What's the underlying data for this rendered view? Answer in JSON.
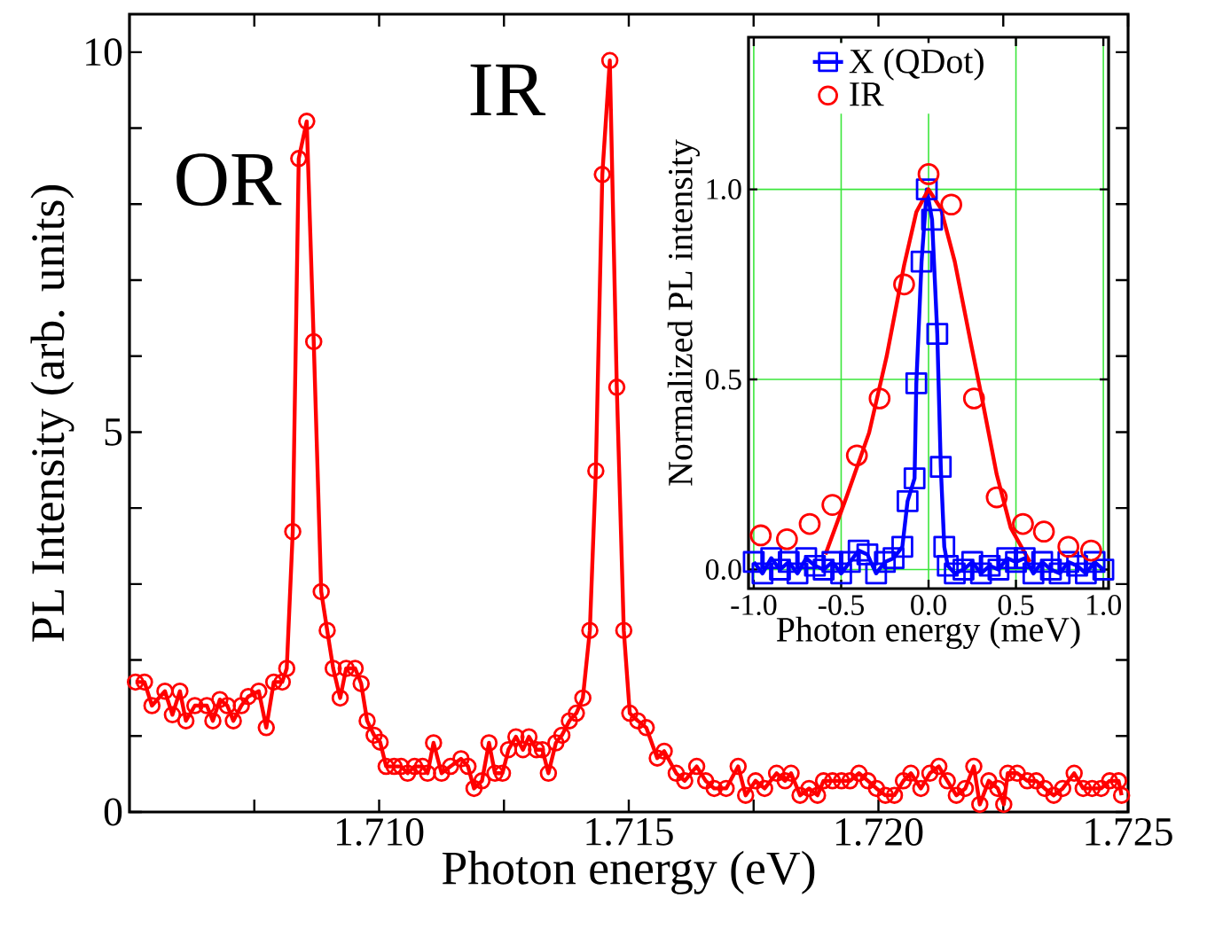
{
  "chart_data": [
    {
      "type": "line",
      "xlabel": "Photon energy (eV)",
      "ylabel": "PL Intensity (arb. units)",
      "color": "#ff0000",
      "marker": "circle",
      "line_style": "solid",
      "x": [
        1.70512,
        1.7053,
        1.70545,
        1.70571,
        1.70586,
        1.70601,
        1.70613,
        1.70631,
        1.70655,
        1.70667,
        1.70681,
        1.70696,
        1.70708,
        1.70724,
        1.70738,
        1.70759,
        1.70774,
        1.70789,
        1.70806,
        1.70815,
        1.70827,
        1.70839,
        1.70855,
        1.70869,
        1.70884,
        1.70896,
        1.70908,
        1.70922,
        1.70934,
        1.70952,
        1.70964,
        1.70976,
        1.7099,
        1.71002,
        1.71014,
        1.7103,
        1.71044,
        1.71057,
        1.71071,
        1.71087,
        1.71097,
        1.71109,
        1.71125,
        1.71143,
        1.71164,
        1.71178,
        1.7119,
        1.71206,
        1.7122,
        1.71232,
        1.71247,
        1.71259,
        1.71274,
        1.71288,
        1.713,
        1.71315,
        1.71327,
        1.71339,
        1.71354,
        1.71366,
        1.71381,
        1.71395,
        1.71408,
        1.71422,
        1.71434,
        1.71447,
        1.71462,
        1.71476,
        1.7149,
        1.71502,
        1.71518,
        1.71535,
        1.71557,
        1.71571,
        1.71595,
        1.71612,
        1.71636,
        1.71654,
        1.71671,
        1.71695,
        1.71719,
        1.71734,
        1.71754,
        1.71772,
        1.71796,
        1.71813,
        1.71825,
        1.71843,
        1.71861,
        1.71878,
        1.7189,
        1.71908,
        1.71926,
        1.71943,
        1.71961,
        1.71979,
        1.71996,
        1.72014,
        1.72032,
        1.7205,
        1.72065,
        1.72085,
        1.72103,
        1.72121,
        1.72138,
        1.72156,
        1.72174,
        1.72191,
        1.72203,
        1.72221,
        1.72239,
        1.72251,
        1.72259,
        1.72278,
        1.72298,
        1.72316,
        1.72333,
        1.72351,
        1.72369,
        1.72392,
        1.7241,
        1.72428,
        1.72446,
        1.72463,
        1.72481,
        1.72487
      ],
      "values": [
        1.71,
        1.71,
        1.4,
        1.59,
        1.28,
        1.59,
        1.2,
        1.4,
        1.4,
        1.2,
        1.48,
        1.4,
        1.2,
        1.4,
        1.52,
        1.59,
        1.11,
        1.71,
        1.71,
        1.89,
        3.69,
        8.6,
        9.09,
        6.19,
        2.9,
        2.39,
        1.89,
        1.5,
        1.89,
        1.89,
        1.69,
        1.2,
        1.01,
        0.92,
        0.6,
        0.6,
        0.6,
        0.51,
        0.6,
        0.6,
        0.51,
        0.91,
        0.51,
        0.6,
        0.7,
        0.6,
        0.31,
        0.41,
        0.91,
        0.51,
        0.51,
        0.82,
        0.99,
        0.82,
        0.99,
        0.82,
        0.82,
        0.51,
        0.91,
        1.01,
        1.2,
        1.3,
        1.5,
        2.39,
        4.49,
        8.39,
        9.89,
        5.59,
        2.39,
        1.3,
        1.2,
        1.11,
        0.71,
        0.8,
        0.51,
        0.41,
        0.6,
        0.41,
        0.31,
        0.31,
        0.6,
        0.22,
        0.41,
        0.31,
        0.51,
        0.41,
        0.51,
        0.22,
        0.31,
        0.22,
        0.41,
        0.41,
        0.41,
        0.41,
        0.51,
        0.41,
        0.31,
        0.22,
        0.22,
        0.41,
        0.51,
        0.31,
        0.51,
        0.6,
        0.41,
        0.22,
        0.31,
        0.6,
        0.1,
        0.41,
        0.31,
        0.1,
        0.51,
        0.51,
        0.41,
        0.41,
        0.31,
        0.22,
        0.31,
        0.51,
        0.31,
        0.31,
        0.31,
        0.41,
        0.41,
        0.22
      ],
      "xlim": [
        1.705,
        1.725
      ],
      "ylim": [
        0,
        10.5
      ],
      "xticks": [
        {
          "value": 1.7075,
          "label": null
        },
        {
          "value": 1.71,
          "label": "1.710"
        },
        {
          "value": 1.7125,
          "label": null
        },
        {
          "value": 1.715,
          "label": "1.715"
        },
        {
          "value": 1.7175,
          "label": null
        },
        {
          "value": 1.72,
          "label": "1.720"
        },
        {
          "value": 1.7225,
          "label": null
        },
        {
          "value": 1.725,
          "label": "1.725"
        }
      ],
      "yticks": [
        0,
        {
          "value": 1,
          "label": null
        },
        {
          "value": 2,
          "label": null
        },
        {
          "value": 3,
          "label": null
        },
        {
          "value": 4,
          "label": null
        },
        5,
        {
          "value": 6,
          "label": null
        },
        {
          "value": 7,
          "label": null
        },
        {
          "value": 8,
          "label": null
        },
        {
          "value": 9,
          "label": null
        },
        10
      ],
      "annotations": [
        {
          "text": "OR",
          "x": 1.70855,
          "y": 9.09
        },
        {
          "text": "IR",
          "x": 1.71462,
          "y": 9.89
        }
      ]
    },
    {
      "type": "scatter",
      "xlabel": "Photon energy (meV)",
      "ylabel": "Normalized PL intensity",
      "grid": true,
      "legend": "top",
      "xlim": [
        -1.03,
        1.03
      ],
      "ylim": [
        -0.05,
        1.4
      ],
      "xticks": [
        {
          "value": -1,
          "label": "-1.0"
        },
        {
          "value": -0.5,
          "label": "-0.5"
        },
        {
          "value": 0,
          "label": "0.0"
        },
        {
          "value": 0.5,
          "label": "0.5"
        },
        {
          "value": 1,
          "label": "1.0"
        }
      ],
      "yticks": [
        {
          "value": 0,
          "label": "0.0"
        },
        {
          "value": 0.5,
          "label": "0.5"
        },
        {
          "value": 1,
          "label": "1.0"
        }
      ],
      "series": [
        {
          "name": "X (QDot)",
          "type": "line",
          "marker": "square",
          "color": "#0000ff",
          "x": [
            -1.0,
            -0.95,
            -0.9,
            -0.85,
            -0.8,
            -0.75,
            -0.7,
            -0.65,
            -0.6,
            -0.55,
            -0.5,
            -0.45,
            -0.4,
            -0.35,
            -0.3,
            -0.25,
            -0.2,
            -0.15,
            -0.12,
            -0.08,
            -0.07,
            -0.04,
            -0.01,
            0.02,
            0.05,
            0.07,
            0.09,
            0.11,
            0.15,
            0.2,
            0.25,
            0.3,
            0.35,
            0.4,
            0.45,
            0.5,
            0.55,
            0.6,
            0.65,
            0.7,
            0.75,
            0.8,
            0.85,
            0.9,
            0.95,
            1.0
          ],
          "values": [
            0.02,
            -0.01,
            0.03,
            0.0,
            0.02,
            -0.01,
            0.03,
            0.01,
            0.0,
            0.02,
            -0.01,
            0.02,
            0.05,
            0.04,
            -0.01,
            0.02,
            0.03,
            0.06,
            0.18,
            0.24,
            0.49,
            0.81,
            1.0,
            0.92,
            0.62,
            0.27,
            0.06,
            0.01,
            -0.01,
            0.0,
            0.02,
            -0.01,
            0.01,
            0.0,
            0.03,
            0.02,
            0.03,
            -0.01,
            0.02,
            0.0,
            -0.01,
            0.02,
            0.01,
            -0.01,
            0.02,
            0.0
          ]
        },
        {
          "name": "IR",
          "type": "scatter",
          "marker": "circle",
          "color": "#ff0000",
          "x": [
            -0.96,
            -0.81,
            -0.68,
            -0.55,
            -0.41,
            -0.28,
            -0.14,
            0.0,
            0.13,
            0.26,
            0.39,
            0.54,
            0.66,
            0.8,
            0.93
          ],
          "values": [
            0.09,
            0.08,
            0.12,
            0.17,
            0.3,
            0.45,
            0.75,
            1.04,
            0.96,
            0.45,
            0.19,
            0.12,
            0.1,
            0.06,
            0.05
          ]
        },
        {
          "type": "line",
          "marker": "none",
          "color": "#ff0000",
          "x": [
            -0.59,
            -0.47,
            -0.34,
            -0.24,
            -0.14,
            -0.07,
            0.0,
            0.07,
            0.15,
            0.24,
            0.31,
            0.39,
            0.47,
            0.58
          ],
          "values": [
            0.04,
            0.19,
            0.36,
            0.56,
            0.8,
            0.94,
            1.0,
            0.95,
            0.81,
            0.6,
            0.44,
            0.25,
            0.11,
            0.02
          ]
        }
      ]
    }
  ]
}
